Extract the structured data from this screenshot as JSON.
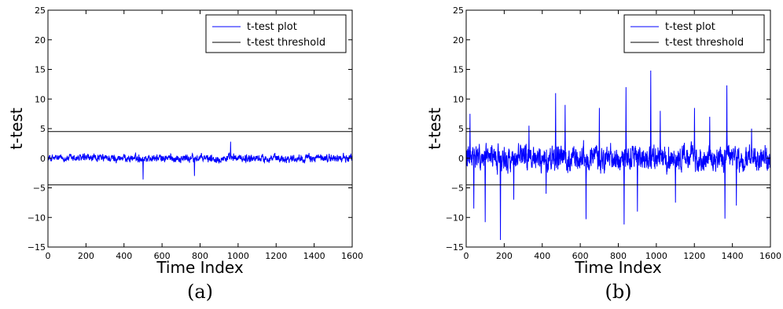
{
  "chart_data": [
    {
      "type": "line",
      "caption": "(a)",
      "xlabel": "Time Index",
      "ylabel": "t-test",
      "xlim": [
        0,
        1600
      ],
      "ylim": [
        -15,
        25
      ],
      "xticks": [
        "0",
        "200",
        "400",
        "600",
        "800",
        "1000",
        "1200",
        "1400",
        "1600"
      ],
      "yticks": [
        "−15",
        "−10",
        "−5",
        "0",
        "5",
        "10",
        "15",
        "20",
        "25"
      ],
      "legend": {
        "position": "top-right"
      },
      "series": [
        {
          "name": "t-test plot",
          "color": "#0000ff",
          "kind": "signal",
          "signal": {
            "n": 1600,
            "amplitude": 1.0,
            "spikes": [
              [
                500,
                -3.6
              ],
              [
                770,
                -3.0
              ],
              [
                960,
                2.8
              ]
            ]
          }
        },
        {
          "name": "t-test threshold",
          "color": "#000000",
          "kind": "threshold",
          "levels": [
            4.5,
            -4.5
          ]
        }
      ]
    },
    {
      "type": "line",
      "caption": "(b)",
      "xlabel": "Time Index",
      "ylabel": "t-test",
      "xlim": [
        0,
        1600
      ],
      "ylim": [
        -15,
        25
      ],
      "xticks": [
        "0",
        "200",
        "400",
        "600",
        "800",
        "1000",
        "1200",
        "1400",
        "1600"
      ],
      "yticks": [
        "−15",
        "−10",
        "−5",
        "0",
        "5",
        "10",
        "15",
        "20",
        "25"
      ],
      "legend": {
        "position": "top-right"
      },
      "series": [
        {
          "name": "t-test plot",
          "color": "#0000ff",
          "kind": "signal",
          "signal": {
            "n": 1600,
            "amplitude": 3.2,
            "spikes": [
              [
                20,
                7.5
              ],
              [
                40,
                -8.5
              ],
              [
                100,
                -10.8
              ],
              [
                180,
                -13.8
              ],
              [
                250,
                -7.0
              ],
              [
                330,
                5.5
              ],
              [
                420,
                -6.0
              ],
              [
                470,
                11.0
              ],
              [
                520,
                9.0
              ],
              [
                630,
                -10.3
              ],
              [
                700,
                8.5
              ],
              [
                830,
                -11.2
              ],
              [
                840,
                12.0
              ],
              [
                900,
                -9.0
              ],
              [
                970,
                14.8
              ],
              [
                1020,
                8.0
              ],
              [
                1100,
                -7.5
              ],
              [
                1200,
                8.5
              ],
              [
                1280,
                7.0
              ],
              [
                1360,
                -10.2
              ],
              [
                1370,
                12.3
              ],
              [
                1420,
                -8.0
              ],
              [
                1500,
                5.0
              ]
            ]
          }
        },
        {
          "name": "t-test threshold",
          "color": "#000000",
          "kind": "threshold",
          "levels": [
            4.5,
            -4.5
          ]
        }
      ]
    }
  ]
}
